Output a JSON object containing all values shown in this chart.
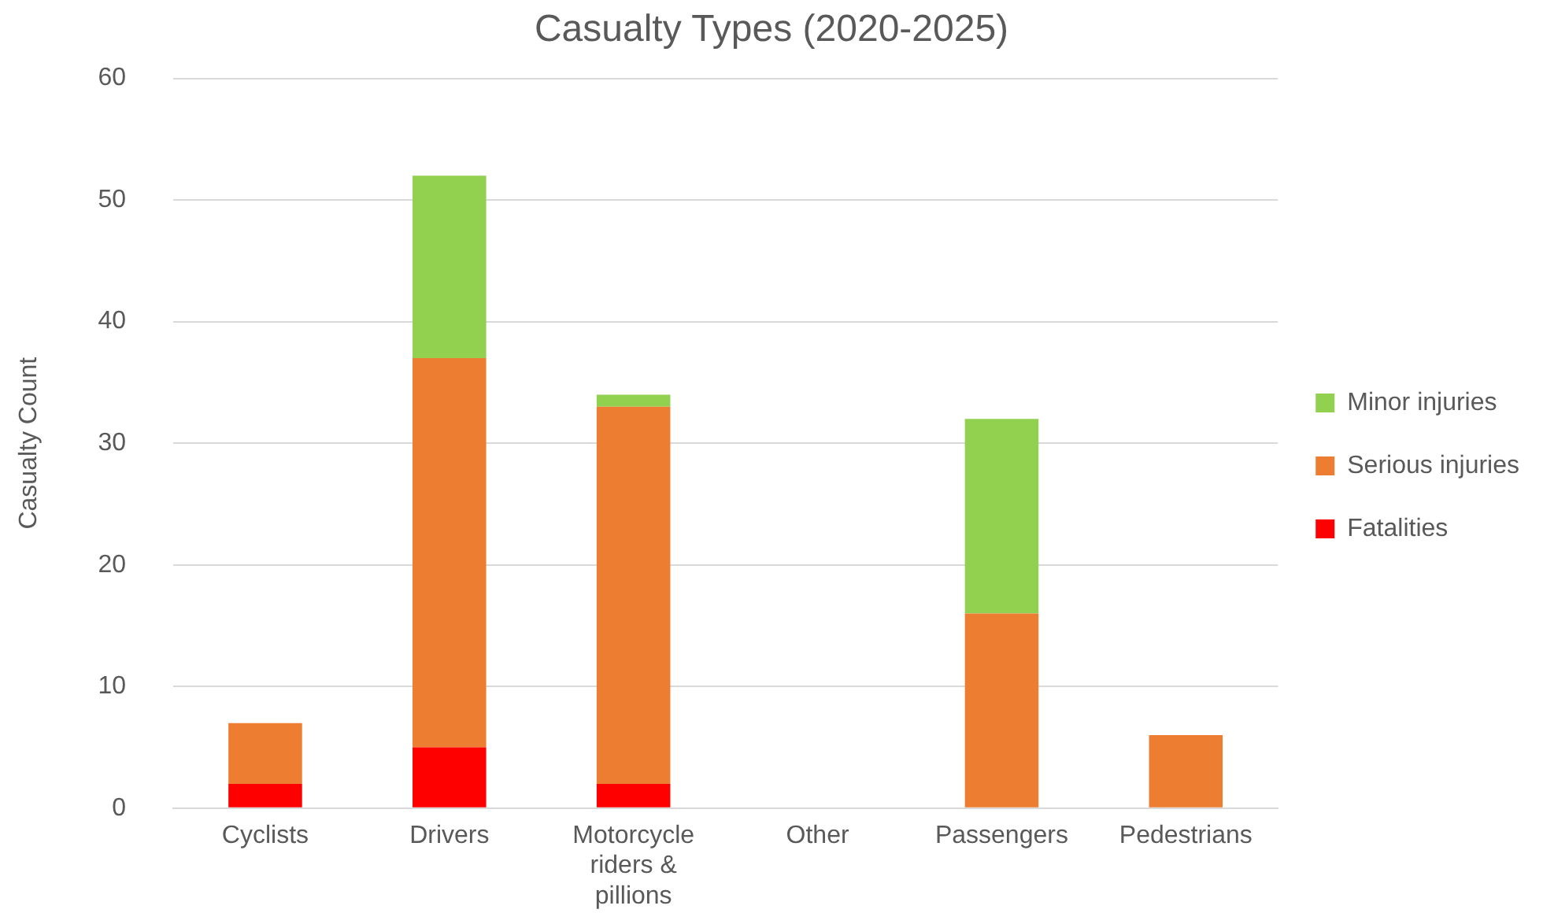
{
  "chart_data": {
    "type": "bar",
    "title": "Casualty Types (2020-2025)",
    "ylabel": "Casualty Count",
    "categories": [
      "Cyclists",
      "Drivers",
      "Motorcycle riders & pillions",
      "Other",
      "Passengers",
      "Pedestrians"
    ],
    "stacked": true,
    "ylim": [
      0,
      60
    ],
    "yticks": [
      0,
      10,
      20,
      30,
      40,
      50,
      60
    ],
    "grid": "y",
    "legend": "right",
    "series": [
      {
        "name": "Fatalities",
        "color": "#ff0000",
        "values": [
          2,
          5,
          2,
          0,
          0,
          0
        ]
      },
      {
        "name": "Serious injuries",
        "color": "#ed7d31",
        "values": [
          5,
          32,
          31,
          0,
          16,
          6
        ]
      },
      {
        "name": "Minor injuries",
        "color": "#92d050",
        "values": [
          0,
          15,
          1,
          0,
          16,
          0
        ]
      }
    ]
  }
}
